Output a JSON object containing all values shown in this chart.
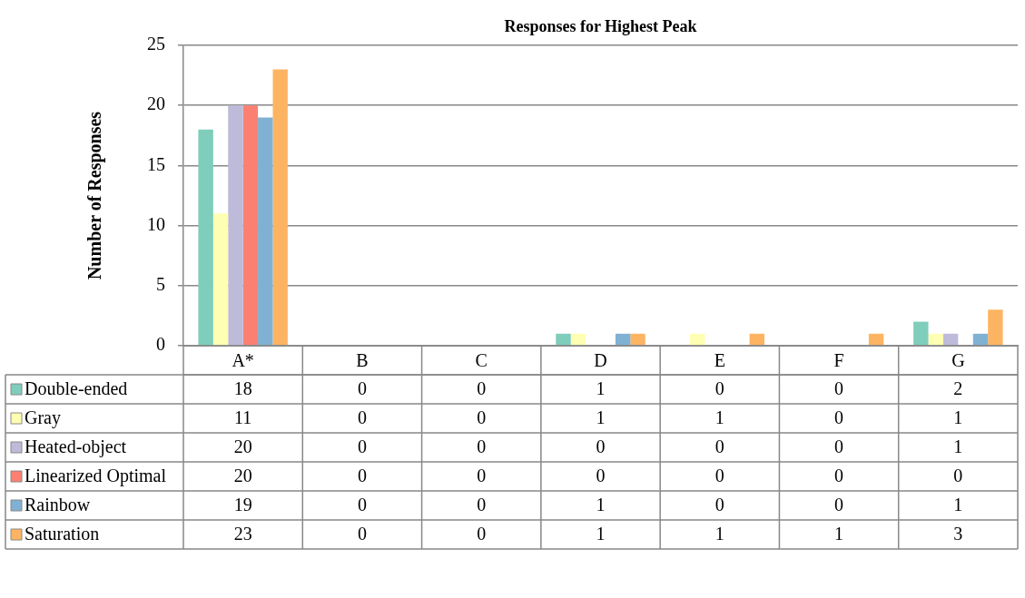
{
  "chart_data": {
    "type": "bar",
    "title": "Responses for Highest Peak",
    "ylabel": "Number of Responses",
    "categories": [
      "A*",
      "B",
      "C",
      "D",
      "E",
      "F",
      "G"
    ],
    "series": [
      {
        "name": "Double-ended",
        "color": "#7fcdbb",
        "values": [
          18,
          0,
          0,
          1,
          0,
          0,
          2
        ]
      },
      {
        "name": "Gray",
        "color": "#ffffb3",
        "values": [
          11,
          0,
          0,
          1,
          1,
          0,
          1
        ]
      },
      {
        "name": "Heated-object",
        "color": "#bebada",
        "values": [
          20,
          0,
          0,
          0,
          0,
          0,
          1
        ]
      },
      {
        "name": "Linearized Optimal",
        "color": "#fb8072",
        "values": [
          20,
          0,
          0,
          0,
          0,
          0,
          0
        ]
      },
      {
        "name": "Rainbow",
        "color": "#80b1d3",
        "values": [
          19,
          0,
          0,
          1,
          0,
          0,
          1
        ]
      },
      {
        "name": "Saturation",
        "color": "#fdb462",
        "values": [
          23,
          0,
          0,
          1,
          1,
          1,
          3
        ]
      }
    ],
    "ylim": [
      0,
      25
    ],
    "yticks": [
      0,
      5,
      10,
      15,
      20,
      25
    ],
    "grid": "y",
    "legend": "bottom",
    "data_labels": true
  }
}
